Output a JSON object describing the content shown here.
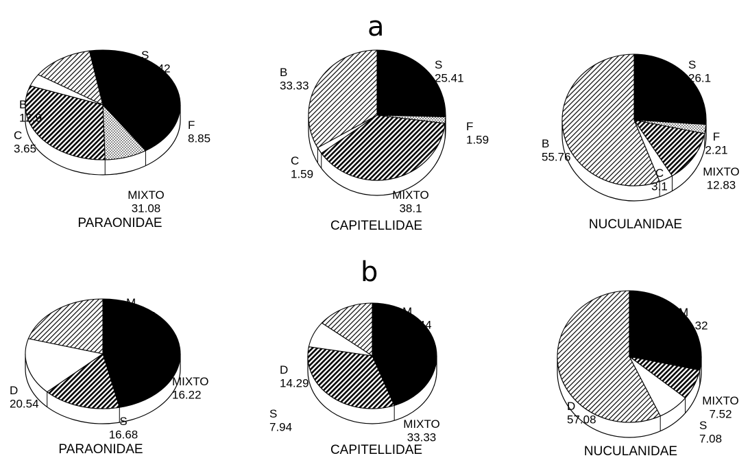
{
  "panels": {
    "a": "a",
    "b": "b"
  },
  "chart_data": [
    {
      "type": "pie",
      "panel": "a",
      "title": "PARAONIDAE",
      "slices": [
        {
          "label": "S",
          "value": 43.42,
          "pattern": "solid-black"
        },
        {
          "label": "F",
          "value": 8.85,
          "pattern": "dots"
        },
        {
          "label": "MIXTO",
          "value": 31.08,
          "pattern": "dense-hatch"
        },
        {
          "label": "C",
          "value": 3.65,
          "pattern": "white"
        },
        {
          "label": "B",
          "value": 12.9,
          "pattern": "light-hatch"
        }
      ]
    },
    {
      "type": "pie",
      "panel": "a",
      "title": "CAPITELLIDAE",
      "slices": [
        {
          "label": "S",
          "value": 25.41,
          "pattern": "solid-black"
        },
        {
          "label": "F",
          "value": 1.59,
          "pattern": "dots"
        },
        {
          "label": "MIXTO",
          "value": 38.1,
          "pattern": "dense-hatch"
        },
        {
          "label": "C",
          "value": 1.59,
          "pattern": "white"
        },
        {
          "label": "B",
          "value": 33.33,
          "pattern": "light-hatch"
        }
      ]
    },
    {
      "type": "pie",
      "panel": "a",
      "title": "NUCULANIDAE",
      "slices": [
        {
          "label": "S",
          "value": 26.1,
          "pattern": "solid-black"
        },
        {
          "label": "F",
          "value": 2.21,
          "pattern": "dots"
        },
        {
          "label": "MIXTO",
          "value": 12.83,
          "pattern": "dense-hatch"
        },
        {
          "label": "C",
          "value": 3.1,
          "pattern": "white"
        },
        {
          "label": "B",
          "value": 55.76,
          "pattern": "light-hatch"
        }
      ]
    },
    {
      "type": "pie",
      "panel": "b",
      "title": "PARAONIDAE",
      "slices": [
        {
          "label": "M",
          "value": 46.55,
          "pattern": "solid-black"
        },
        {
          "label": "MIXTO",
          "value": 16.22,
          "pattern": "dense-hatch"
        },
        {
          "label": "S",
          "value": 16.68,
          "pattern": "white"
        },
        {
          "label": "D",
          "value": 20.54,
          "pattern": "light-hatch"
        }
      ]
    },
    {
      "type": "pie",
      "panel": "b",
      "title": "CAPITELLIDAE",
      "slices": [
        {
          "label": "M",
          "value": 44.44,
          "pattern": "solid-black"
        },
        {
          "label": "MIXTO",
          "value": 33.33,
          "pattern": "dense-hatch"
        },
        {
          "label": "S",
          "value": 7.94,
          "pattern": "white"
        },
        {
          "label": "D",
          "value": 14.29,
          "pattern": "light-hatch"
        }
      ]
    },
    {
      "type": "pie",
      "panel": "b",
      "title": "NUCULANIDAE",
      "slices": [
        {
          "label": "M",
          "value": 28.32,
          "pattern": "solid-black"
        },
        {
          "label": "MIXTO",
          "value": 7.52,
          "pattern": "dense-hatch"
        },
        {
          "label": "S",
          "value": 7.08,
          "pattern": "white"
        },
        {
          "label": "D",
          "value": 57.08,
          "pattern": "light-hatch"
        }
      ]
    }
  ]
}
